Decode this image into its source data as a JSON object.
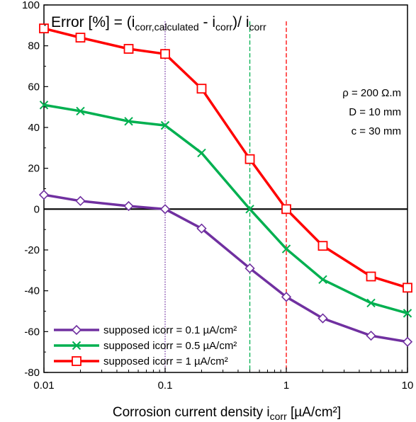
{
  "chart_data": {
    "type": "line",
    "title_parts": {
      "prefix": "Error [%] = (i",
      "sub1": "corr,calculated",
      "mid": " - i",
      "sub2": "corr",
      "mid2": ")/ i",
      "sub3": "corr"
    },
    "xlabel_parts": {
      "prefix": "Corrosion current density i",
      "sub": "corr",
      "suffix": " [µA/cm²]"
    },
    "x_scale": "log",
    "xlim": [
      0.01,
      10
    ],
    "ylim": [
      -80,
      100
    ],
    "x_ticks": [
      0.01,
      0.1,
      1,
      10
    ],
    "x_tick_labels": [
      "0.01",
      "0.1",
      "1",
      "10"
    ],
    "y_ticks": [
      -80,
      -60,
      -40,
      -20,
      0,
      20,
      40,
      60,
      80,
      100
    ],
    "y_tick_labels": [
      "-80",
      "-60",
      "-40",
      "-20",
      "0",
      "20",
      "40",
      "60",
      "80",
      "100"
    ],
    "x": [
      0.01,
      0.02,
      0.05,
      0.1,
      0.2,
      0.5,
      1,
      2,
      5,
      10
    ],
    "series": [
      {
        "name": "supposed icorr = 0.1 µA/cm²",
        "color": "#7030A0",
        "marker": "diamond",
        "values": [
          7,
          4,
          1.5,
          0,
          -9.5,
          -29,
          -43,
          -53.5,
          -62,
          -65
        ]
      },
      {
        "name": "supposed icorr = 0.5 µA/cm²",
        "color": "#00B050",
        "marker": "x",
        "values": [
          51,
          48,
          43,
          41,
          27.5,
          0,
          -19.5,
          -34.5,
          -46,
          -51
        ]
      },
      {
        "name": "supposed icorr = 1 µA/cm²",
        "color": "#FF0000",
        "marker": "square",
        "values": [
          88.5,
          84,
          78.5,
          76,
          59,
          24.5,
          0,
          -18,
          -33,
          -38.5
        ]
      }
    ],
    "vertical_lines": [
      {
        "x": 0.1,
        "color": "#7030A0",
        "style": "dotted"
      },
      {
        "x": 0.5,
        "color": "#00B050",
        "style": "dashed"
      },
      {
        "x": 1,
        "color": "#FF0000",
        "style": "dashed"
      }
    ],
    "zero_line": true,
    "grid": false,
    "legend_position": "bottom-left",
    "annotations": [
      "ρ = 200 Ω.m",
      "D = 10 mm",
      "c = 30 mm"
    ]
  }
}
